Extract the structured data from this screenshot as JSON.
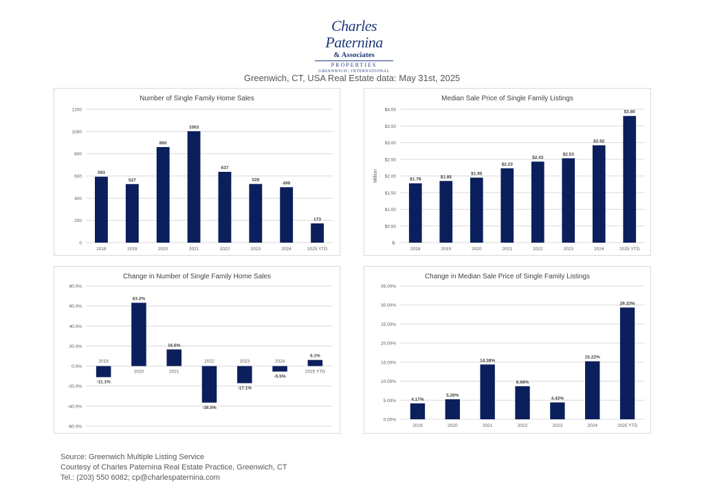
{
  "logo": {
    "name_text": "Charles Paternina",
    "assoc_text": "& Associates",
    "properties_text": "PROPERTIES",
    "locations_text": "GREENWICH | INTERNATIONAL"
  },
  "page_title": "Greenwich, CT, USA Real Estate data: May 31st, 2025",
  "footer": {
    "source": "Source: Greenwich Multiple Listing Service",
    "courtesy": "Courtesy of Charles Paternina Real Estate Practice, Greenwich, CT",
    "contact": "Tel.: (203) 550 6082; cp@charlespaternina.com"
  },
  "colors": {
    "bar": "#0b1f5c",
    "grid": "#d9d9d9",
    "axis_text": "#595959"
  },
  "chart_data": [
    {
      "type": "bar",
      "title": "Number of Single Family Home Sales",
      "categories": [
        "2018",
        "2019",
        "2020",
        "2021",
        "2022",
        "2023",
        "2024",
        "2025 YTD"
      ],
      "values": [
        593,
        527,
        860,
        1003,
        637,
        528,
        499,
        173
      ],
      "value_labels": [
        "593",
        "527",
        "860",
        "1003",
        "637",
        "528",
        "499",
        "173"
      ],
      "ylim": [
        0,
        1200
      ],
      "yticks": [
        0,
        200,
        400,
        600,
        800,
        1000,
        1200
      ],
      "ytick_labels": [
        "0",
        "200",
        "400",
        "600",
        "800",
        "1000",
        "1200"
      ],
      "ylabel": "",
      "grid": true
    },
    {
      "type": "bar",
      "title": "Median Sale Price of Single Family Listings",
      "categories": [
        "2018",
        "2019",
        "2020",
        "2021",
        "2022",
        "2023",
        "2024",
        "2025 YTD"
      ],
      "values": [
        1.78,
        1.85,
        1.95,
        2.23,
        2.43,
        2.53,
        2.92,
        3.8
      ],
      "value_labels": [
        "$1.78",
        "$1.85",
        "$1.95",
        "$2.23",
        "$2.43",
        "$2.53",
        "$2.92",
        "$3.80"
      ],
      "ylim": [
        0,
        4
      ],
      "yticks": [
        0,
        0.5,
        1,
        1.5,
        2,
        2.5,
        3,
        3.5,
        4
      ],
      "ytick_labels": [
        "$-",
        "$0.50",
        "$1.00",
        "$1.50",
        "$2.00",
        "$2.50",
        "$3.00",
        "$3.50",
        "$4.00"
      ],
      "ylabel": "Million",
      "grid": true
    },
    {
      "type": "bar",
      "title": "Change in Number of Single Family Home Sales",
      "categories": [
        "2019",
        "2020",
        "2021",
        "2022",
        "2023",
        "2024",
        "2025 YTD"
      ],
      "values": [
        -11.1,
        63.2,
        16.6,
        -36.5,
        -17.1,
        -5.5,
        6.1
      ],
      "value_labels": [
        "-11.1%",
        "63.2%",
        "16.6%",
        "-36.5%",
        "-17.1%",
        "-5.5%",
        "6.1%"
      ],
      "ylim": [
        -60,
        80
      ],
      "yticks": [
        -60,
        -40,
        -20,
        0,
        20,
        40,
        60,
        80
      ],
      "ytick_labels": [
        "-60.0%",
        "-40.0%",
        "-20.0%",
        "0.0%",
        "20.0%",
        "40.0%",
        "60.0%",
        "80.0%"
      ],
      "ylabel": "",
      "grid": true
    },
    {
      "type": "bar",
      "title": "Change in Median Sale Price of Single Family Listings",
      "categories": [
        "2019",
        "2020",
        "2021",
        "2022",
        "2023",
        "2024",
        "2025 YTD"
      ],
      "values": [
        4.17,
        5.26,
        14.38,
        8.68,
        4.42,
        15.22,
        29.33
      ],
      "value_labels": [
        "4.17%",
        "5.26%",
        "14.38%",
        "8.68%",
        "4.42%",
        "15.22%",
        "29.33%"
      ],
      "ylim": [
        0,
        35
      ],
      "yticks": [
        0,
        5,
        10,
        15,
        20,
        25,
        30,
        35
      ],
      "ytick_labels": [
        "0.00%",
        "5.00%",
        "10.00%",
        "15.00%",
        "20.00%",
        "25.00%",
        "30.00%",
        "35.00%"
      ],
      "ylabel": "",
      "grid": true
    }
  ]
}
